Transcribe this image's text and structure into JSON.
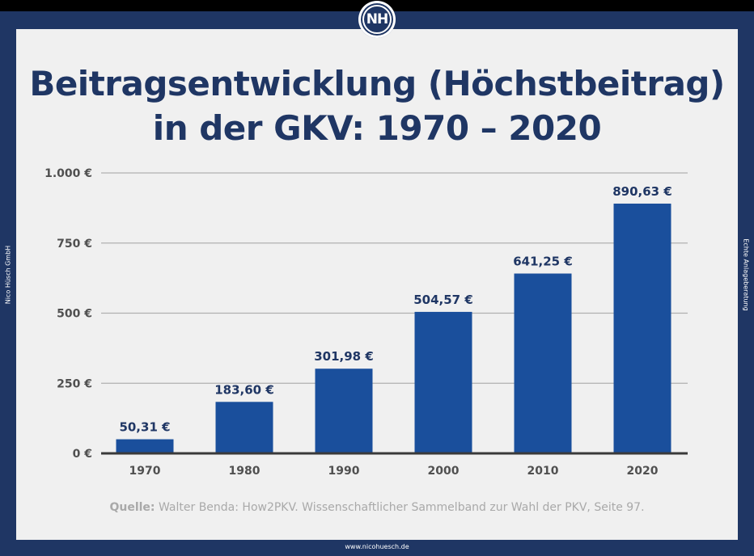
{
  "logo": {
    "text": "NH"
  },
  "title_line1": "Beitragsentwicklung (Höchstbeitrag)",
  "title_line2": "in der GKV: 1970 – 2020",
  "side_left": "Nico Hüsch GmbH",
  "side_right": "Echte Anlageberatung",
  "footer_url": "www.nicohuesch.de",
  "source": {
    "label": "Quelle:",
    "text": " Walter Benda: How2PKV. Wissenschaftlicher Sammelband zur Wahl der PKV, Seite 97."
  },
  "colors": {
    "bar": "#1a4f9c",
    "frame": "#1f3664",
    "background": "#f0f0f0",
    "grid": "#b0b0b0"
  },
  "chart_data": {
    "type": "bar",
    "categories": [
      "1970",
      "1980",
      "1990",
      "2000",
      "2010",
      "2020"
    ],
    "values": [
      50.31,
      183.6,
      301.98,
      504.57,
      641.25,
      890.63
    ],
    "value_labels": [
      "50,31 €",
      "183,60 €",
      "301,98 €",
      "504,57 €",
      "641,25 €",
      "890,63 €"
    ],
    "yticks": [
      0,
      250,
      500,
      750,
      1000
    ],
    "ytick_labels": [
      "0 €",
      "250 €",
      "500 €",
      "750 €",
      "1.000 €"
    ],
    "ylim": [
      0,
      1000
    ],
    "grid": true,
    "legend": "none"
  }
}
